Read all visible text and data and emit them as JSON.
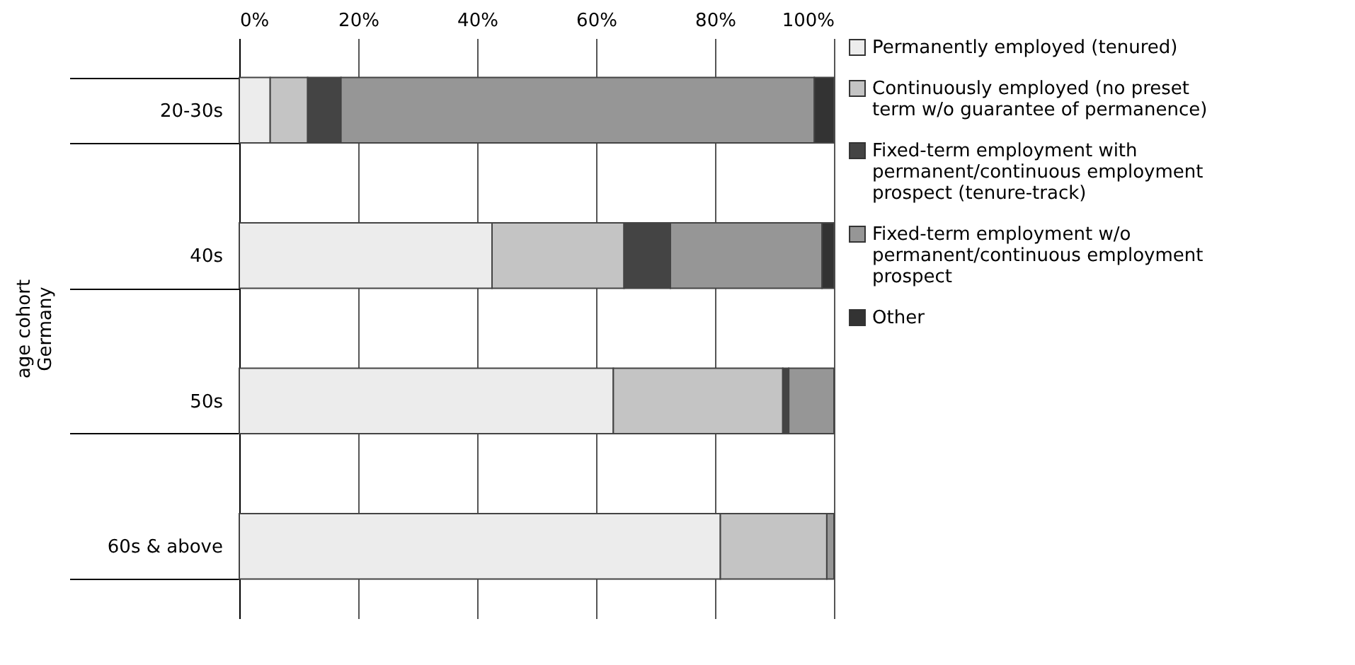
{
  "chart_data": {
    "type": "bar",
    "orientation": "horizontal",
    "stacked": true,
    "ylabel": "age cohort\nGermany",
    "categories": [
      "20-30s",
      "40s",
      "50s",
      "60s & above"
    ],
    "series": [
      {
        "name": "Permanently employed (tenured)",
        "color": "#ececec",
        "values": [
          5.2,
          42.5,
          62.9,
          80.9
        ]
      },
      {
        "name": "Continuously employed (no preset term w/o guarantee of permanence)",
        "color": "#c4c4c4",
        "values": [
          6.3,
          22.2,
          28.5,
          17.9
        ]
      },
      {
        "name": "Fixed-term employment with permanent/continuous employment prospect (tenure-track)",
        "color": "#444444",
        "values": [
          5.6,
          7.8,
          1.0,
          0
        ]
      },
      {
        "name": "Fixed-term employment w/o permanent/continuous employment prospect",
        "color": "#969696",
        "values": [
          79.6,
          25.5,
          7.6,
          1.2
        ]
      },
      {
        "name": "Other",
        "color": "#333333",
        "values": [
          3.3,
          2.0,
          0,
          0
        ]
      }
    ],
    "xlim": [
      0,
      100
    ],
    "xticks": [
      {
        "value": 0,
        "label": "0%"
      },
      {
        "value": 20,
        "label": "20%"
      },
      {
        "value": 40,
        "label": "40%"
      },
      {
        "value": 60,
        "label": "60%"
      },
      {
        "value": 80,
        "label": "80%"
      },
      {
        "value": 100,
        "label": "100%"
      }
    ],
    "grid": "x",
    "legend": "right"
  }
}
